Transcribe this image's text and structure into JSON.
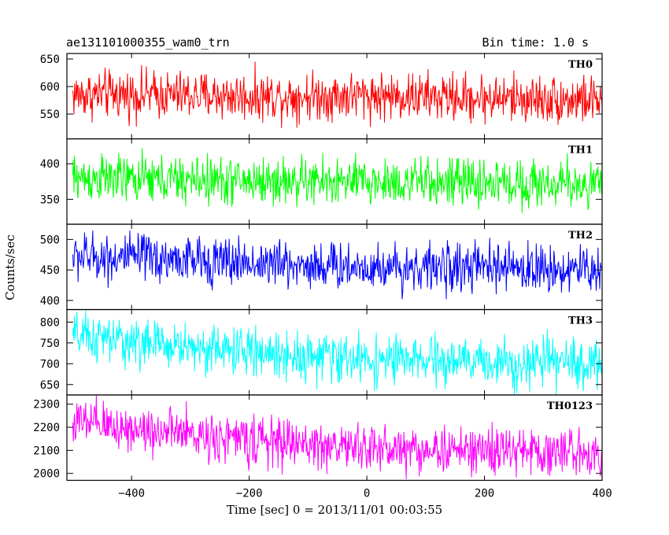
{
  "chart_data": {
    "type": "line",
    "title": "ae131101000355_wam0_trn",
    "bin_time_label": "Bin time: 1.0 s",
    "xlabel": "Time [sec] 0 = 2013/11/01 00:03:55",
    "ylabel": "Counts/sec",
    "xlim": [
      -510,
      400
    ],
    "x_ticks": [
      -400,
      -200,
      0,
      200,
      400
    ],
    "x_tick_labels": [
      "−400",
      "−200",
      "0",
      "200",
      "400"
    ],
    "series": [
      {
        "name": "TH0",
        "color": "#ff0000",
        "ylim": [
          505,
          660
        ],
        "y_ticks": [
          550,
          600,
          650
        ],
        "y_tick_labels": [
          "550",
          "600",
          "650"
        ],
        "x": [
          -500,
          -400,
          -300,
          -200,
          -100,
          0,
          100,
          200,
          300,
          400
        ],
        "values": [
          585,
          586,
          584,
          582,
          583,
          584,
          581,
          579,
          577,
          575
        ]
      },
      {
        "name": "TH1",
        "color": "#00ff00",
        "ylim": [
          315,
          435
        ],
        "y_ticks": [
          350,
          400
        ],
        "y_tick_labels": [
          "350",
          "400"
        ],
        "x": [
          -500,
          -400,
          -300,
          -200,
          -100,
          0,
          100,
          200,
          300,
          400
        ],
        "values": [
          380,
          378,
          377,
          376,
          375,
          374,
          374,
          373,
          372,
          371
        ]
      },
      {
        "name": "TH2",
        "color": "#0000ff",
        "ylim": [
          385,
          525
        ],
        "y_ticks": [
          400,
          450,
          500
        ],
        "y_tick_labels": [
          "400",
          "450",
          "500"
        ],
        "x": [
          -500,
          -400,
          -300,
          -200,
          -100,
          0,
          100,
          200,
          300,
          400
        ],
        "values": [
          472,
          470,
          466,
          462,
          458,
          455,
          454,
          454,
          452,
          450
        ]
      },
      {
        "name": "TH3",
        "color": "#00ffff",
        "ylim": [
          625,
          830
        ],
        "y_ticks": [
          650,
          700,
          750,
          800
        ],
        "y_tick_labels": [
          "650",
          "700",
          "750",
          "800"
        ],
        "x": [
          -500,
          -400,
          -300,
          -200,
          -100,
          0,
          100,
          200,
          300,
          400
        ],
        "values": [
          765,
          752,
          740,
          728,
          718,
          710,
          706,
          704,
          702,
          700
        ]
      },
      {
        "name": "TH0123",
        "color": "#ff00ff",
        "ylim": [
          1970,
          2340
        ],
        "y_ticks": [
          2000,
          2100,
          2200,
          2300
        ],
        "y_tick_labels": [
          "2000",
          "2100",
          "2200",
          "2300"
        ],
        "x": [
          -500,
          -400,
          -300,
          -200,
          -100,
          0,
          100,
          200,
          300,
          400
        ],
        "values": [
          2220,
          2195,
          2170,
          2145,
          2125,
          2110,
          2102,
          2098,
          2095,
          2090
        ]
      }
    ]
  }
}
